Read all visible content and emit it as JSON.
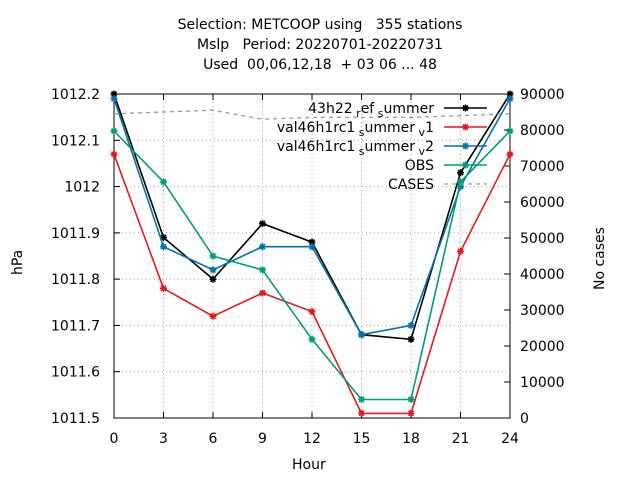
{
  "chart_data": {
    "type": "line",
    "title_lines": [
      "Selection: METCOOP using   355 stations",
      "Mslp   Period: 20220701-20220731",
      "Used  00,06,12,18  + 03 06 ... 48"
    ],
    "xlabel": "Hour",
    "ylabel": "hPa",
    "y2label": "No cases",
    "x": [
      0,
      3,
      6,
      9,
      12,
      15,
      18,
      21,
      24
    ],
    "xlim": [
      0,
      24
    ],
    "ylim": [
      1011.5,
      1012.2
    ],
    "y2lim": [
      0,
      90000
    ],
    "x_ticks": [
      "0",
      "3",
      "6",
      "9",
      "12",
      "15",
      "18",
      "21",
      "24"
    ],
    "y_ticks": [
      "1011.5",
      "1011.6",
      "1011.7",
      "1011.8",
      "1011.9",
      "1012",
      "1012.1",
      "1012.2"
    ],
    "y2_ticks": [
      "0",
      "10000",
      "20000",
      "30000",
      "40000",
      "50000",
      "60000",
      "70000",
      "80000",
      "90000"
    ],
    "grid": true,
    "legend_position": "top-right",
    "series": [
      {
        "name": "43h22 ref_summer",
        "color": "#000000",
        "axis": "y",
        "values": [
          1012.2,
          1011.89,
          1011.8,
          1011.92,
          1011.88,
          1011.68,
          1011.67,
          1012.03,
          1012.2
        ]
      },
      {
        "name": "val46h1rc1_summer_v1",
        "color": "#e41a1c",
        "axis": "y",
        "values": [
          1012.07,
          1011.78,
          1011.72,
          1011.77,
          1011.73,
          1011.51,
          1011.51,
          1011.86,
          1012.07
        ]
      },
      {
        "name": "val46h1rc1_summer_v2",
        "color": "#0072b2",
        "axis": "y",
        "values": [
          1012.19,
          1011.87,
          1011.82,
          1011.87,
          1011.87,
          1011.68,
          1011.7,
          1012.0,
          1012.19
        ]
      },
      {
        "name": "OBS",
        "color": "#009e73",
        "axis": "y",
        "values": [
          1012.12,
          1012.01,
          1011.85,
          1011.82,
          1011.67,
          1011.54,
          1011.54,
          1012.01,
          1012.12
        ]
      },
      {
        "name": "CASES",
        "color": "#999999",
        "axis": "y2",
        "dashed": true,
        "x": [
          0,
          3,
          6,
          9,
          12,
          15,
          18,
          21,
          24
        ],
        "values": [
          84500,
          85000,
          85500,
          83000,
          83500,
          83500,
          83500,
          84000,
          84500
        ]
      }
    ],
    "legend": [
      {
        "main": "43h22",
        "sub1": "r",
        "mid": "ef",
        "sub2": "s",
        "tail": "ummer"
      },
      {
        "main": "val46h1rc1",
        "sub1": "s",
        "mid": "ummer",
        "sub2": "v",
        "tail": "1"
      },
      {
        "main": "val46h1rc1",
        "sub1": "s",
        "mid": "ummer",
        "sub2": "v",
        "tail": "2"
      },
      {
        "main": "OBS"
      },
      {
        "main": "CASES"
      }
    ]
  }
}
